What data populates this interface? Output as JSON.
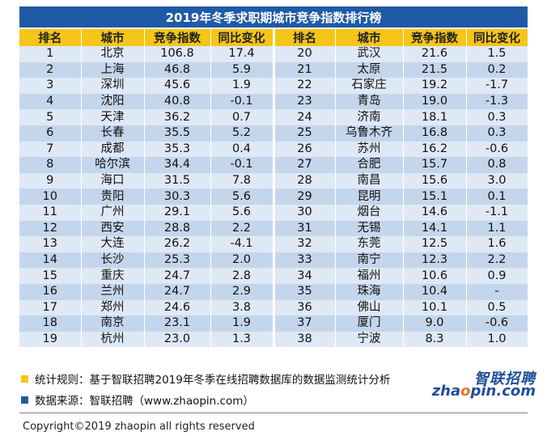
{
  "title": "2019年冬季求职期城市竞争指数排行榜",
  "columns": [
    "排名",
    "城市",
    "竞争指数",
    "同比变化",
    "排名",
    "城市",
    "竞争指数",
    "同比变化"
  ],
  "rows": [
    [
      "1",
      "北京",
      "106.8",
      "17.4",
      "20",
      "武汉",
      "21.6",
      "1.5"
    ],
    [
      "2",
      "上海",
      "46.8",
      "5.9",
      "21",
      "太原",
      "21.5",
      "0.2"
    ],
    [
      "3",
      "深圳",
      "45.6",
      "1.9",
      "22",
      "石家庄",
      "19.2",
      "-1.7"
    ],
    [
      "4",
      "沈阳",
      "40.8",
      "-0.1",
      "23",
      "青岛",
      "19.0",
      "-1.3"
    ],
    [
      "5",
      "天津",
      "36.2",
      "0.7",
      "24",
      "济南",
      "18.1",
      "0.3"
    ],
    [
      "6",
      "长春",
      "35.5",
      "5.2",
      "25",
      "乌鲁木齐",
      "16.8",
      "0.3"
    ],
    [
      "7",
      "成都",
      "35.3",
      "0.4",
      "26",
      "苏州",
      "16.2",
      "-0.6"
    ],
    [
      "8",
      "哈尔滨",
      "34.4",
      "-0.1",
      "27",
      "合肥",
      "15.7",
      "0.8"
    ],
    [
      "9",
      "海口",
      "31.5",
      "7.8",
      "28",
      "南昌",
      "15.6",
      "3.0"
    ],
    [
      "10",
      "贵阳",
      "30.3",
      "5.6",
      "29",
      "昆明",
      "15.1",
      "0.1"
    ],
    [
      "11",
      "广州",
      "29.1",
      "5.6",
      "30",
      "烟台",
      "14.6",
      "-1.1"
    ],
    [
      "12",
      "西安",
      "28.8",
      "2.2",
      "31",
      "无锡",
      "14.1",
      "1.1"
    ],
    [
      "13",
      "大连",
      "26.2",
      "-4.1",
      "32",
      "东莞",
      "12.5",
      "1.6"
    ],
    [
      "14",
      "长沙",
      "25.3",
      "2.0",
      "33",
      "南宁",
      "12.3",
      "2.2"
    ],
    [
      "15",
      "重庆",
      "24.7",
      "2.8",
      "34",
      "福州",
      "10.6",
      "0.9"
    ],
    [
      "16",
      "兰州",
      "24.7",
      "2.9",
      "35",
      "珠海",
      "10.4",
      "-"
    ],
    [
      "17",
      "郑州",
      "24.6",
      "3.8",
      "36",
      "佛山",
      "10.1",
      "0.5"
    ],
    [
      "18",
      "南京",
      "23.1",
      "1.9",
      "37",
      "厦门",
      "9.0",
      "-0.6"
    ],
    [
      "19",
      "杭州",
      "23.0",
      "1.3",
      "38",
      "宁波",
      "8.3",
      "1.0"
    ]
  ],
  "notes": {
    "rule_text": "统计规则：基于智联招聘2019年冬季在线招聘数据库的数据监测统计分析",
    "source_text": "数据来源：智联招聘（www.zhaopin.com）"
  },
  "logo": {
    "cn": "智联招聘",
    "en_pre": "zha",
    "en_o": "o",
    "en_post": "pin.com"
  },
  "copyright": "Copyright©2019 zhaopin all rights reserved",
  "colors": {
    "title_bg": "#1f5aa6",
    "header_bg": "#f5c518",
    "row_light": "#dfe9f5",
    "row_dark": "#c3d6ec",
    "rule_square": "#f5c518",
    "source_square": "#1f5aa6"
  }
}
